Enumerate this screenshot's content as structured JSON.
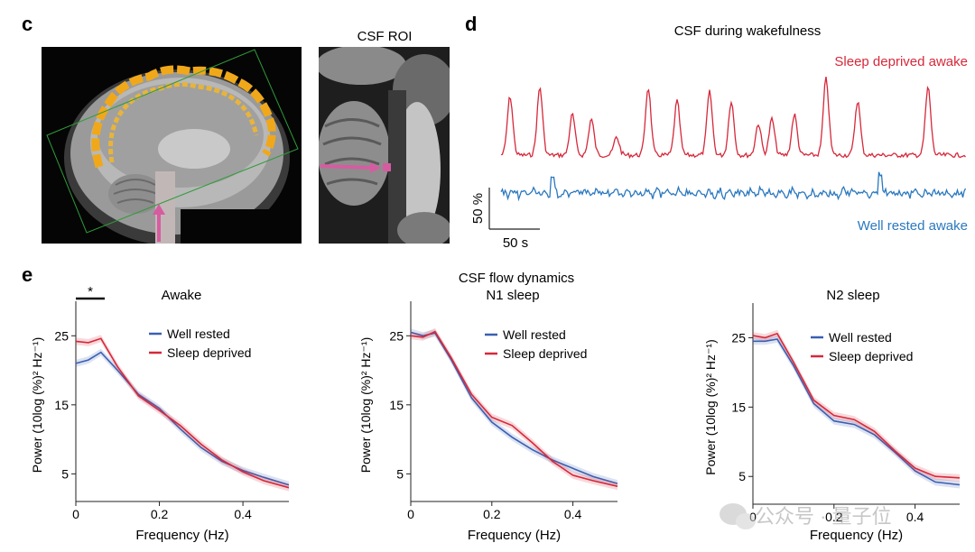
{
  "panel_c": {
    "letter": "c",
    "roi_title": "CSF ROI"
  },
  "panel_d": {
    "letter": "d",
    "title": "CSF during wakefulness",
    "sleep_deprived_label": "Sleep deprived awake",
    "well_rested_label": "Well rested awake",
    "scale_y": "50 %",
    "scale_x": "50 s",
    "colors": {
      "sleep_deprived": "#d6283a",
      "well_rested": "#2a78bf"
    }
  },
  "panel_e": {
    "letter": "e",
    "overall_title": "CSF flow dynamics",
    "significance": "*"
  },
  "watermark": "公众号 · 量子位",
  "chart_data": [
    {
      "type": "line",
      "title": "Awake",
      "xlabel": "Frequency (Hz)",
      "ylabel": "Power (10log (%)² Hz⁻¹)",
      "xlim": [
        0,
        0.51
      ],
      "ylim": [
        1,
        30
      ],
      "xticks": [
        0,
        0.2,
        0.4
      ],
      "xtick_labels": [
        "0",
        "0.2",
        "0.4"
      ],
      "yticks": [
        5,
        15,
        25
      ],
      "yticks_labels": [
        "5",
        "15",
        "25"
      ],
      "legend_position": "top-center",
      "x": [
        0,
        0.03,
        0.06,
        0.1,
        0.15,
        0.2,
        0.25,
        0.3,
        0.35,
        0.4,
        0.45,
        0.51
      ],
      "series": [
        {
          "name": "Well rested",
          "color": "#3a5fb3",
          "values": [
            21,
            21.5,
            22.6,
            20,
            16.5,
            14.5,
            11.5,
            8.8,
            6.8,
            5.5,
            4.5,
            3.4
          ]
        },
        {
          "name": "Sleep deprived",
          "color": "#d6283a",
          "values": [
            24.2,
            24,
            24.6,
            20.5,
            16.3,
            14.2,
            12,
            9.3,
            7,
            5.3,
            4,
            3
          ]
        }
      ]
    },
    {
      "type": "line",
      "title": "N1 sleep",
      "xlabel": "Frequency (Hz)",
      "ylabel": "Power (10log (%)² Hz⁻¹)",
      "xlim": [
        0,
        0.51
      ],
      "ylim": [
        1,
        30
      ],
      "xticks": [
        0,
        0.2,
        0.4
      ],
      "xtick_labels": [
        "0",
        "0.2",
        "0.4"
      ],
      "yticks": [
        5,
        15,
        25
      ],
      "yticks_labels": [
        "5",
        "15",
        "25"
      ],
      "legend_position": "top-center",
      "x": [
        0,
        0.03,
        0.06,
        0.1,
        0.15,
        0.2,
        0.25,
        0.3,
        0.35,
        0.4,
        0.45,
        0.51
      ],
      "series": [
        {
          "name": "Well rested",
          "color": "#3a5fb3",
          "values": [
            25.5,
            25,
            25.4,
            21.5,
            16,
            12.5,
            10.3,
            8.5,
            7,
            5.8,
            4.6,
            3.6
          ]
        },
        {
          "name": "Sleep deprived",
          "color": "#d6283a",
          "values": [
            25,
            24.8,
            25.6,
            21.8,
            16.5,
            13.2,
            12,
            9.5,
            6.8,
            4.8,
            4,
            3.2
          ]
        }
      ]
    },
    {
      "type": "line",
      "title": "N2 sleep",
      "xlabel": "Frequency (Hz)",
      "ylabel": "Power (10log (%)² Hz⁻¹)",
      "xlim": [
        0,
        0.51
      ],
      "ylim": [
        1,
        30
      ],
      "xticks": [
        0,
        0.2,
        0.4
      ],
      "xtick_labels": [
        "0",
        "0.2",
        "0.4"
      ],
      "yticks": [
        5,
        15,
        25
      ],
      "yticks_labels": [
        "5",
        "15",
        "25"
      ],
      "legend_position": "top-center",
      "x": [
        0,
        0.03,
        0.06,
        0.1,
        0.15,
        0.2,
        0.25,
        0.3,
        0.35,
        0.4,
        0.45,
        0.51
      ],
      "series": [
        {
          "name": "Well rested",
          "color": "#3a5fb3",
          "values": [
            24.5,
            24.5,
            24.8,
            21,
            15.5,
            13,
            12.5,
            11,
            8.5,
            5.8,
            4.2,
            3.8
          ]
        },
        {
          "name": "Sleep deprived",
          "color": "#d6283a",
          "values": [
            25.3,
            25,
            25.6,
            21.5,
            16,
            13.8,
            13.2,
            11.5,
            8.7,
            6.2,
            5,
            4.8
          ]
        }
      ]
    }
  ]
}
